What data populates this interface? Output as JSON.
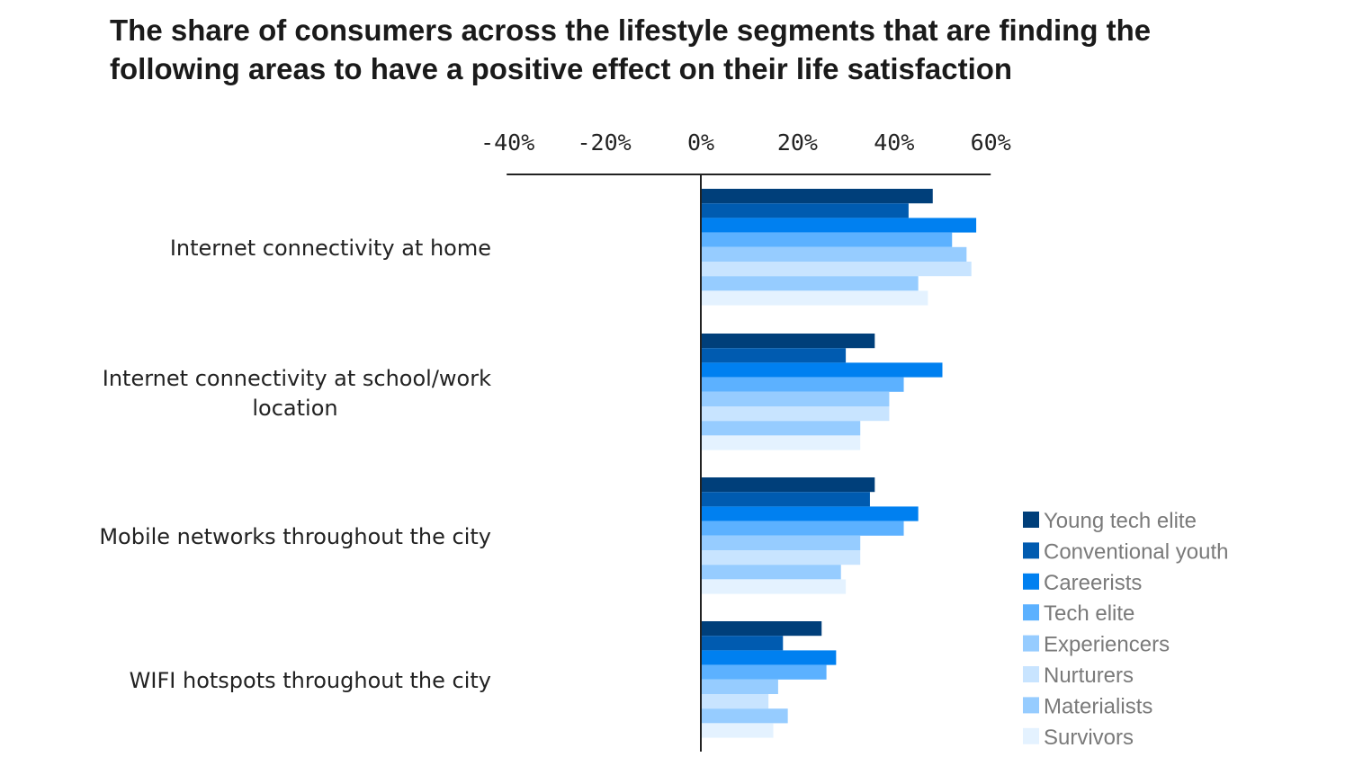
{
  "chart_data": {
    "type": "bar",
    "orientation": "horizontal",
    "title": "The share of consumers across the lifestyle segments that are finding the following areas to have a positive effect on their life satisfaction",
    "categories": [
      [
        "Internet connectivity at home"
      ],
      [
        "Internet connectivity at school/work",
        "location"
      ],
      [
        "Mobile networks throughout the city"
      ],
      [
        "WIFI hotspots throughout the city"
      ]
    ],
    "xlim": [
      -40,
      60
    ],
    "xticks": [
      -40,
      -20,
      0,
      20,
      40,
      60
    ],
    "xtick_labels": [
      "-40%",
      "-20%",
      "0%",
      "20%",
      "40%",
      "60%"
    ],
    "grid": false,
    "legend_placement": "bottom-right",
    "series": [
      {
        "name": "Young tech elite",
        "color": "#003f7a",
        "values": [
          48,
          36,
          36,
          25
        ]
      },
      {
        "name": "Conventional youth",
        "color": "#005bb0",
        "values": [
          43,
          30,
          35,
          17
        ]
      },
      {
        "name": "Careerists",
        "color": "#0080f0",
        "values": [
          57,
          50,
          45,
          28
        ]
      },
      {
        "name": "Tech elite",
        "color": "#5cb1ff",
        "values": [
          52,
          42,
          42,
          26
        ]
      },
      {
        "name": "Experiencers",
        "color": "#96ccff",
        "values": [
          55,
          39,
          33,
          16
        ]
      },
      {
        "name": "Nurturers",
        "color": "#c8e4ff",
        "values": [
          56,
          39,
          33,
          14
        ]
      },
      {
        "name": "Materialists",
        "color": "#96ccff",
        "values": [
          45,
          33,
          29,
          18
        ]
      },
      {
        "name": "Survivors",
        "color": "#e4f2ff",
        "values": [
          47,
          33,
          30,
          15
        ]
      }
    ]
  }
}
